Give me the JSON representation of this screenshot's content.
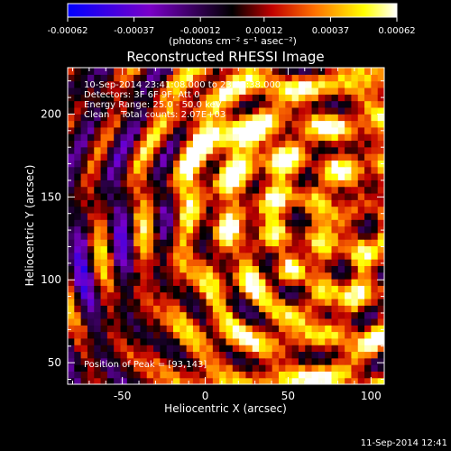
{
  "chart_data": {
    "type": "heatmap",
    "title": "Reconstructed RHESSI Image",
    "xlabel": "Heliocentric X (arcsec)",
    "ylabel": "Heliocentric Y (arcsec)",
    "xlim": [
      -83,
      108
    ],
    "ylim": [
      37,
      228
    ],
    "xticks": [
      -50,
      0,
      50,
      100
    ],
    "yticks": [
      50,
      100,
      150,
      200
    ],
    "colorbar": {
      "range": [
        -0.00062,
        0.00062
      ],
      "ticks": [
        "-0.00062",
        "-0.00037",
        "-0.00012",
        "0.00012",
        "0.00037",
        "0.00062"
      ],
      "unit_label": "(photons cm⁻² s⁻¹ asec⁻²)",
      "colors": [
        "#0000ff",
        "#7a00c8",
        "#000000",
        "#c00000",
        "#ff7000",
        "#ffff00",
        "#ffffff"
      ]
    },
    "info_lines": [
      "10-Sep-2014 23:41:08.000 to 23:45:38.000",
      "Detectors: 3F 6F 9F, Att 0",
      "Energy Range: 25.0 - 50.0 keV",
      "Clean    Total counts: 2.07E+03"
    ],
    "peak_label": "Position of Peak = [93,143]",
    "peak": [
      93,
      143
    ],
    "grid_cells": 48,
    "grid": false
  },
  "footer": {
    "timestamp": "11-Sep-2014 12:41"
  }
}
